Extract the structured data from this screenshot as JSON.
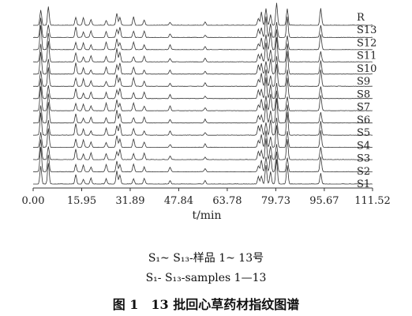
{
  "figure": {
    "caption_line1": "S₁~ S₁₃-样品 1~ 13号",
    "caption_line2": "S₁- S₁₃-samples 1—13",
    "caption_line3": "图 1　13 批回心草药材指纹图谱"
  },
  "chart_data": {
    "type": "line",
    "xlabel": "t/min",
    "xlim": [
      0,
      111.52
    ],
    "xticks": [
      0.0,
      15.95,
      31.89,
      47.84,
      63.78,
      79.73,
      95.67,
      111.52
    ],
    "xtick_labels": [
      "0.00",
      "15.95",
      "31.89",
      "47.84",
      "63.78",
      "79.73",
      "95.67",
      "111.52"
    ],
    "grid": false,
    "line_color": "#333333",
    "series_labels": [
      "R",
      "S13",
      "S12",
      "S11",
      "S10",
      "S9",
      "S8",
      "S7",
      "S6",
      "S5",
      "S4",
      "S3",
      "S2",
      "S1"
    ],
    "peak_retention_times": [
      2.5,
      5.0,
      14.0,
      16.5,
      19.0,
      24.0,
      27.5,
      28.5,
      33.0,
      36.5,
      45.0,
      56.5,
      74.0,
      75.0,
      76.5,
      78.0,
      80.0,
      83.5,
      94.5
    ]
  }
}
